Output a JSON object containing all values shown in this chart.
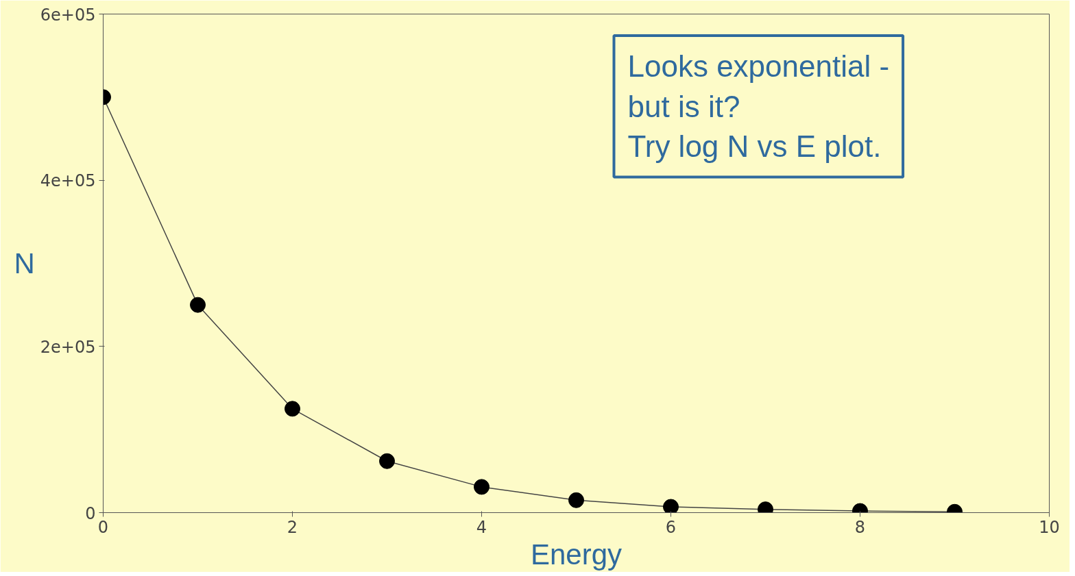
{
  "chart_data": {
    "type": "line",
    "xlabel": "Energy",
    "ylabel": "N",
    "x": [
      0,
      1,
      2,
      3,
      4,
      5,
      6,
      7,
      8,
      9
    ],
    "series": [
      {
        "color": "#000000",
        "values": [
          500000,
          250000,
          125000,
          62000,
          31000,
          15000,
          7000,
          4000,
          2000,
          1000
        ]
      }
    ],
    "xlim": [
      0,
      10
    ],
    "xticks": [
      0,
      2,
      4,
      6,
      8,
      10
    ],
    "ylim": [
      0,
      600000
    ],
    "yticks": [
      0,
      {
        "value": 200000,
        "label": "2e+05"
      },
      {
        "value": 400000,
        "label": "4e+05"
      },
      {
        "value": 600000,
        "label": "6e+05"
      }
    ],
    "marker": "circle",
    "line_style": "solid",
    "grid": false,
    "annotations": [
      "Looks exponential -\nbut is it?\nTry log N vs E plot."
    ]
  }
}
